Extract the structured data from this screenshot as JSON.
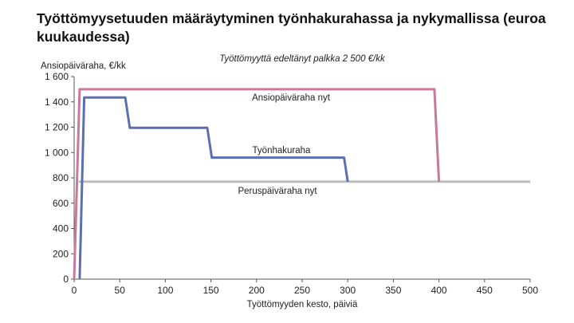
{
  "chart_data": {
    "type": "line",
    "title": "Työttömyysetuuden määräytyminen työnhakurahassa ja nykymallissa (euroa kuukaudessa)",
    "subtitle": "Työttömyyttä edeltänyt palkka 2 500 €/kk",
    "ylabel": "Ansiopäiväraha, €/kk",
    "xlabel": "Työttömyyden kesto, päiviä",
    "xlim": [
      0,
      500
    ],
    "ylim": [
      0,
      1600
    ],
    "xticks": [
      0,
      50,
      100,
      150,
      200,
      250,
      300,
      350,
      400,
      450,
      500
    ],
    "yticks": [
      0,
      200,
      400,
      600,
      800,
      1000,
      1200,
      1400,
      1600
    ],
    "ytick_labels": [
      "0",
      "200",
      "400",
      "600",
      "800",
      "1 000",
      "1 200",
      "1 400",
      "1 600"
    ],
    "grid": false,
    "series": [
      {
        "name": "Ansiopäiväraha nyt",
        "color": "#c9799b",
        "points": [
          [
            0,
            0
          ],
          [
            6,
            1500
          ],
          [
            395,
            1500
          ],
          [
            400,
            770
          ]
        ]
      },
      {
        "name": "Työnhakuraha",
        "color": "#5b6fb5",
        "points": [
          [
            6,
            0
          ],
          [
            11,
            1435
          ],
          [
            56,
            1435
          ],
          [
            61,
            1195
          ],
          [
            146,
            1195
          ],
          [
            151,
            960
          ],
          [
            296,
            960
          ],
          [
            300,
            770
          ]
        ]
      },
      {
        "name": "Peruspäiväraha nyt",
        "color": "#bdbdbd",
        "points": [
          [
            5,
            770
          ],
          [
            500,
            770
          ]
        ]
      }
    ],
    "annotations": [
      {
        "text": "Ansiopäiväraha nyt",
        "series": 0
      },
      {
        "text": "Työnhakuraha",
        "series": 1
      },
      {
        "text": "Peruspäiväraha nyt",
        "series": 2
      }
    ]
  }
}
